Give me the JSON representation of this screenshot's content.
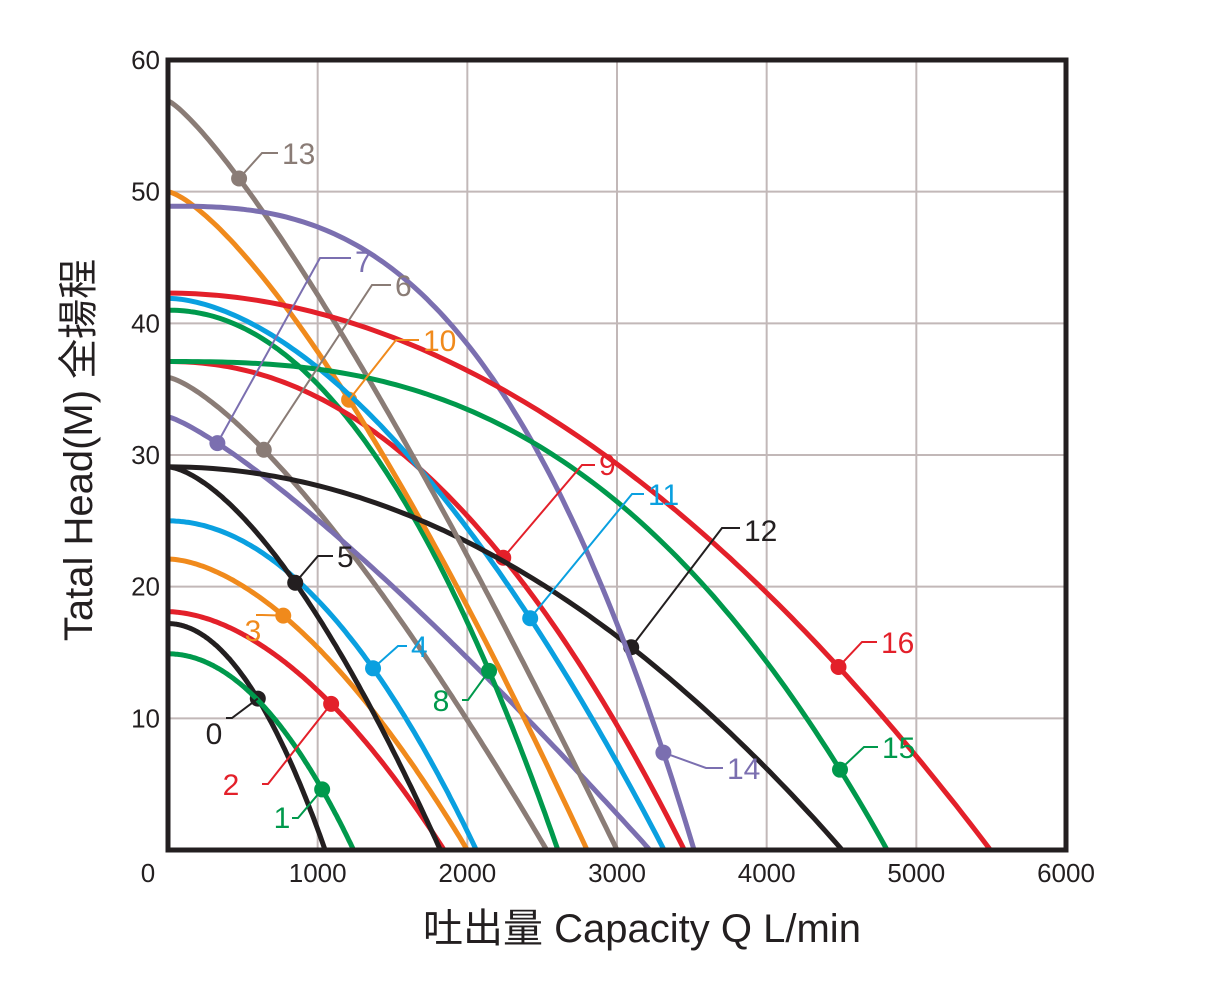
{
  "chart_data": {
    "type": "line",
    "xlabel": "吐出量 Capacity  Q  L/min",
    "ylabel": "Tatal Head(M) 全揚程",
    "xlim": [
      0,
      6000
    ],
    "ylim": [
      0,
      60
    ],
    "xticks": [
      "0",
      "1000",
      "2000",
      "3000",
      "4000",
      "5000",
      "6000"
    ],
    "yticks": [
      "10",
      "20",
      "30",
      "40",
      "50",
      "60"
    ],
    "grid": true,
    "colors": {
      "black": "#231f20",
      "green": "#00994c",
      "red": "#e3202a",
      "orange": "#f08a1c",
      "blue": "#0aa0e0",
      "gray": "#8a7c76",
      "purple": "#7b6fb0",
      "grid": "#c2b8b8"
    },
    "series": [
      {
        "name": "0",
        "color": "black",
        "points": [
          [
            0,
            17.2
          ],
          [
            600,
            11.5
          ],
          [
            1050,
            0
          ]
        ]
      },
      {
        "name": "1",
        "color": "green",
        "points": [
          [
            0,
            14.9
          ],
          [
            1030,
            4.6
          ],
          [
            1240,
            0
          ]
        ]
      },
      {
        "name": "2",
        "color": "red",
        "points": [
          [
            0,
            18.1
          ],
          [
            1090,
            11.1
          ],
          [
            1845,
            0
          ]
        ]
      },
      {
        "name": "3",
        "color": "orange",
        "points": [
          [
            0,
            22.1
          ],
          [
            770,
            17.8
          ],
          [
            2000,
            0
          ]
        ]
      },
      {
        "name": "4",
        "color": "blue",
        "points": [
          [
            0,
            25.0
          ],
          [
            1370,
            13.8
          ],
          [
            2060,
            0
          ]
        ]
      },
      {
        "name": "5",
        "color": "black",
        "points": [
          [
            0,
            29.1
          ],
          [
            850,
            20.3
          ],
          [
            1820,
            0
          ]
        ]
      },
      {
        "name": "6",
        "color": "gray",
        "points": [
          [
            0,
            35.9
          ],
          [
            640,
            30.4
          ],
          [
            2530,
            0
          ]
        ]
      },
      {
        "name": "7",
        "color": "purple",
        "points": [
          [
            0,
            32.9
          ],
          [
            330,
            30.9
          ],
          [
            3220,
            0
          ]
        ]
      },
      {
        "name": "8",
        "color": "green",
        "points": [
          [
            0,
            41.0
          ],
          [
            2145,
            13.6
          ],
          [
            2605,
            0
          ]
        ]
      },
      {
        "name": "9",
        "color": "red",
        "points": [
          [
            0,
            37.1
          ],
          [
            2240,
            22.2
          ],
          [
            3450,
            0
          ]
        ]
      },
      {
        "name": "10",
        "color": "orange",
        "points": [
          [
            0,
            50.0
          ],
          [
            1210,
            34.2
          ],
          [
            2800,
            0
          ]
        ]
      },
      {
        "name": "11",
        "color": "blue",
        "points": [
          [
            0,
            41.9
          ],
          [
            2420,
            17.6
          ],
          [
            3315,
            0
          ]
        ]
      },
      {
        "name": "12",
        "color": "black",
        "points": [
          [
            0,
            29.1
          ],
          [
            3095,
            15.4
          ],
          [
            4505,
            0
          ]
        ]
      },
      {
        "name": "13",
        "color": "gray",
        "points": [
          [
            0,
            56.9
          ],
          [
            475,
            51.0
          ],
          [
            3000,
            0
          ]
        ]
      },
      {
        "name": "14",
        "color": "purple",
        "points": [
          [
            0,
            48.9
          ],
          [
            3310,
            7.4
          ],
          [
            3515,
            0
          ]
        ]
      },
      {
        "name": "15",
        "color": "green",
        "points": [
          [
            0,
            37.1
          ],
          [
            4490,
            6.1
          ],
          [
            4805,
            0
          ]
        ]
      },
      {
        "name": "16",
        "color": "red",
        "points": [
          [
            0,
            42.3
          ],
          [
            4480,
            13.9
          ],
          [
            5495,
            0
          ]
        ]
      }
    ]
  }
}
